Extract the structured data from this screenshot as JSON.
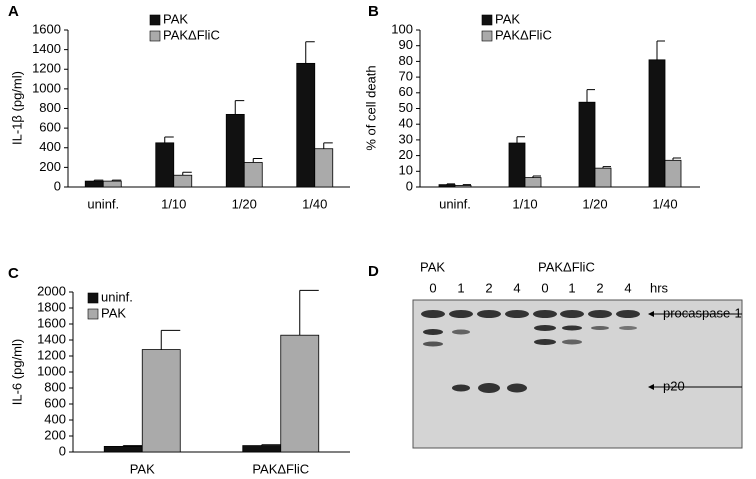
{
  "chart_data": [
    {
      "type": "bar",
      "panel": "A",
      "ylabel": "IL-1β (pg/ml)",
      "categories": [
        "uninf.",
        "1/10",
        "1/20",
        "1/40"
      ],
      "series": [
        {
          "name": "PAK",
          "color": "#111111",
          "values": [
            60,
            450,
            740,
            1260
          ],
          "errors": [
            10,
            60,
            140,
            220
          ]
        },
        {
          "name": "PAKΔFliC",
          "color": "#aaaaaa",
          "values": [
            60,
            120,
            250,
            390
          ],
          "errors": [
            10,
            30,
            40,
            60
          ]
        }
      ],
      "ylim": [
        0,
        1600
      ],
      "yticks": [
        0,
        200,
        400,
        600,
        800,
        1000,
        1200,
        1400,
        1600
      ]
    },
    {
      "type": "bar",
      "panel": "B",
      "ylabel": "% of cell death",
      "categories": [
        "uninf.",
        "1/10",
        "1/20",
        "1/40"
      ],
      "series": [
        {
          "name": "PAK",
          "color": "#111111",
          "values": [
            1.5,
            28,
            54,
            81
          ],
          "errors": [
            0.5,
            4,
            8,
            12
          ]
        },
        {
          "name": "PAKΔFliC",
          "color": "#aaaaaa",
          "values": [
            1,
            6,
            12,
            17
          ],
          "errors": [
            0.5,
            1,
            1,
            1.5
          ]
        }
      ],
      "ylim": [
        0,
        100
      ],
      "yticks": [
        0,
        10,
        20,
        30,
        40,
        50,
        60,
        70,
        80,
        90,
        100
      ]
    },
    {
      "type": "bar",
      "panel": "C",
      "ylabel": "IL-6 (pg/ml)",
      "categories": [
        "PAK",
        "PAKΔFliC"
      ],
      "series": [
        {
          "name": "uninf.",
          "color": "#111111",
          "values": [
            70,
            80
          ],
          "errors": [
            10,
            10
          ]
        },
        {
          "name": "PAK",
          "color": "#aaaaaa",
          "values": [
            1280,
            1460
          ],
          "errors": [
            240,
            560
          ]
        }
      ],
      "ylim": [
        0,
        2000
      ],
      "yticks": [
        0,
        200,
        400,
        600,
        800,
        1000,
        1200,
        1400,
        1600,
        1800,
        2000
      ]
    }
  ],
  "blot": {
    "panel": "D",
    "groups": [
      "PAK",
      "PAKΔFliC"
    ],
    "lanes": [
      "0",
      "1",
      "2",
      "4",
      "0",
      "1",
      "2",
      "4"
    ],
    "unit": "hrs",
    "bands": [
      "procaspase-1",
      "p20"
    ]
  }
}
